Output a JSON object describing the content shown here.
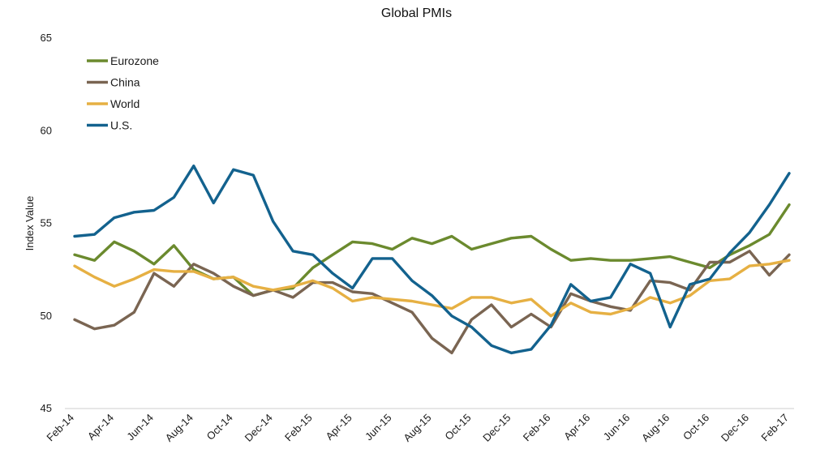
{
  "chart_data": {
    "type": "line",
    "title": "Global PMIs",
    "xlabel": "",
    "ylabel": "Index Value",
    "ylim": [
      45,
      65
    ],
    "yticks": [
      45,
      50,
      55,
      60,
      65
    ],
    "grid": false,
    "legend_position": "top-left",
    "x": [
      "Feb-14",
      "Mar-14",
      "Apr-14",
      "May-14",
      "Jun-14",
      "Jul-14",
      "Aug-14",
      "Sep-14",
      "Oct-14",
      "Nov-14",
      "Dec-14",
      "Jan-15",
      "Feb-15",
      "Mar-15",
      "Apr-15",
      "May-15",
      "Jun-15",
      "Jul-15",
      "Aug-15",
      "Sep-15",
      "Oct-15",
      "Nov-15",
      "Dec-15",
      "Jan-16",
      "Feb-16",
      "Mar-16",
      "Apr-16",
      "May-16",
      "Jun-16",
      "Jul-16",
      "Aug-16",
      "Sep-16",
      "Oct-16",
      "Nov-16",
      "Dec-16",
      "Jan-17",
      "Feb-17"
    ],
    "xtick_labels": [
      "Feb-14",
      "Apr-14",
      "Jun-14",
      "Aug-14",
      "Oct-14",
      "Dec-14",
      "Feb-15",
      "Apr-15",
      "Jun-15",
      "Aug-15",
      "Oct-15",
      "Dec-15",
      "Feb-16",
      "Apr-16",
      "Jun-16",
      "Aug-16",
      "Oct-16",
      "Dec-16",
      "Feb-17"
    ],
    "series": [
      {
        "name": "Eurozone",
        "color": "#6b8a2e",
        "values": [
          53.3,
          53.0,
          54.0,
          53.5,
          52.8,
          53.8,
          52.5,
          52.0,
          52.1,
          51.1,
          51.4,
          51.5,
          52.6,
          53.3,
          54.0,
          53.9,
          53.6,
          54.2,
          53.9,
          54.3,
          53.6,
          53.9,
          54.2,
          54.3,
          53.6,
          53.0,
          53.1,
          53.0,
          53.0,
          53.1,
          53.2,
          52.9,
          52.6,
          53.3,
          53.8,
          54.4,
          56.0
        ]
      },
      {
        "name": "China",
        "color": "#7a6552",
        "values": [
          49.8,
          49.3,
          49.5,
          50.2,
          52.3,
          51.6,
          52.8,
          52.3,
          51.6,
          51.1,
          51.4,
          51.0,
          51.8,
          51.8,
          51.3,
          51.2,
          50.7,
          50.2,
          48.8,
          48.0,
          49.8,
          50.6,
          49.4,
          50.1,
          49.4,
          51.2,
          50.8,
          50.5,
          50.3,
          51.9,
          51.8,
          51.4,
          52.9,
          52.9,
          53.5,
          52.2,
          53.3
        ]
      },
      {
        "name": "World",
        "color": "#e6b043",
        "values": [
          52.7,
          52.1,
          51.6,
          52.0,
          52.5,
          52.4,
          52.4,
          52.0,
          52.1,
          51.6,
          51.4,
          51.6,
          51.9,
          51.5,
          50.8,
          51.0,
          50.9,
          50.8,
          50.6,
          50.4,
          51.0,
          51.0,
          50.7,
          50.9,
          50.0,
          50.7,
          50.2,
          50.1,
          50.4,
          51.0,
          50.7,
          51.1,
          51.9,
          52.0,
          52.7,
          52.8,
          53.0
        ]
      },
      {
        "name": "U.S.",
        "color": "#13628e",
        "values": [
          54.3,
          54.4,
          55.3,
          55.6,
          55.7,
          56.4,
          58.1,
          56.1,
          57.9,
          57.6,
          55.1,
          53.5,
          53.3,
          52.3,
          51.5,
          53.1,
          53.1,
          51.9,
          51.1,
          50.0,
          49.4,
          48.4,
          48.0,
          48.2,
          49.5,
          51.7,
          50.8,
          51.0,
          52.8,
          52.3,
          49.4,
          51.7,
          52.0,
          53.4,
          54.5,
          56.0,
          57.7
        ]
      }
    ]
  }
}
